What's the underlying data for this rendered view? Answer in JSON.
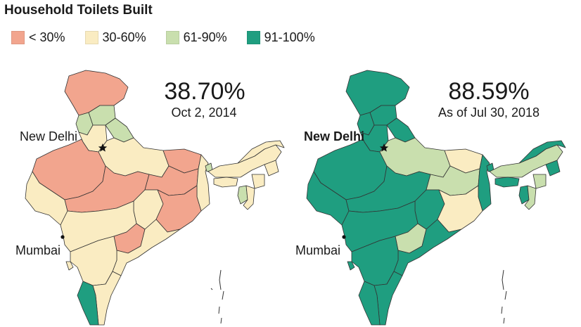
{
  "title": "Household Toilets Built",
  "legend": [
    {
      "label": "< 30%",
      "color": "#f2a58e"
    },
    {
      "label": "30-60%",
      "color": "#faecc2"
    },
    {
      "label": "61-90%",
      "color": "#c9dfae"
    },
    {
      "label": "91-100%",
      "color": "#1f9e80"
    }
  ],
  "maps": [
    {
      "stat": "38.70%",
      "date": "Oct 2, 2014",
      "city1": "New Delhi",
      "city2": "Mumbai"
    },
    {
      "stat": "88.59%",
      "date": "As of Jul 30, 2018",
      "city1": "New Delhi",
      "city2": "Mumbai"
    }
  ]
}
